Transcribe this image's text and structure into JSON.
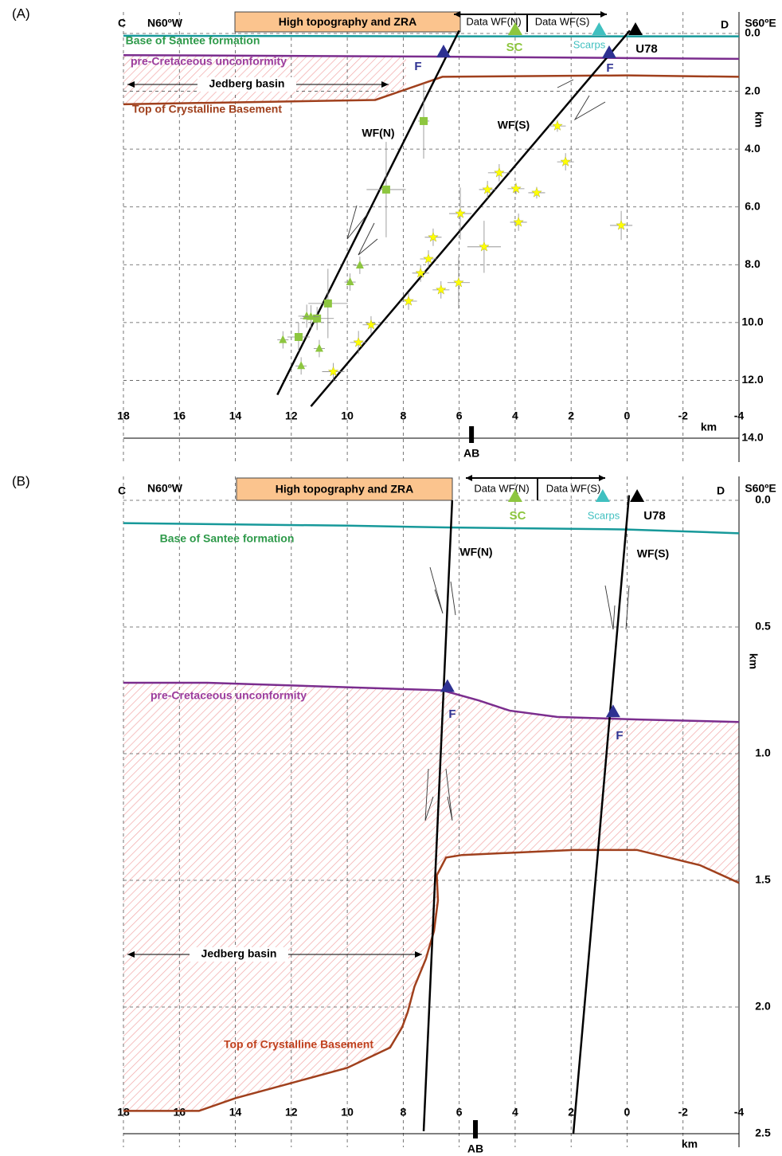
{
  "chart_data": [
    {
      "type": "scatter",
      "panel_label": "(A)",
      "left_label": "C",
      "left_direction": "N60ºW",
      "right_label": "D",
      "right_direction": "S60ºE",
      "box_label": "High topography and ZRA",
      "data_labels": [
        "Data WF(N)",
        "Data WF(S)"
      ],
      "basin_label": "Jedberg basin",
      "x_marker_label": "AB",
      "x_marker": 5.56,
      "xlabel": "km",
      "ylabel": "km",
      "xlim": [
        18,
        -4
      ],
      "xticks": [
        18,
        16,
        14,
        12,
        10,
        8,
        6,
        4,
        2,
        0,
        -2,
        -4
      ],
      "ylim": [
        0,
        14
      ],
      "y_inverted": true,
      "grid": true,
      "yticks": [
        {
          "value": 0,
          "label": "0.0"
        },
        {
          "value": 2,
          "label": "2.0"
        },
        {
          "value": 4,
          "label": "4.0"
        },
        {
          "value": 6,
          "label": "6.0"
        },
        {
          "value": 8,
          "label": "8.0"
        },
        {
          "value": 10,
          "label": "10.0"
        },
        {
          "value": 12,
          "label": "12.0"
        },
        {
          "value": 14,
          "label": "14.0"
        }
      ],
      "boundaries": [
        {
          "name": "Base of Santee formation",
          "color": "#17999a",
          "label_color": "#2e9a4a",
          "x": [
            18,
            6,
            -4
          ],
          "y": [
            0.08,
            0.1,
            0.1
          ]
        },
        {
          "name": "pre-Cretaceous unconformity",
          "color": "#7b2d8e",
          "label_color": "#9b3d9e",
          "x": [
            18,
            7,
            0,
            -4
          ],
          "y": [
            0.75,
            0.8,
            0.85,
            0.88
          ]
        },
        {
          "name": "Top of Crystalline Basement",
          "color": "#a0401d",
          "label_color": "#a0401d",
          "x": [
            18,
            9,
            8.4,
            6.6,
            0,
            -4
          ],
          "y": [
            2.45,
            2.3,
            2.1,
            1.5,
            1.45,
            1.5
          ]
        }
      ],
      "faults": [
        {
          "name": "WF(N)",
          "color": "#000000",
          "x": [
            6,
            12.5
          ],
          "y": [
            -0.1,
            12.5
          ]
        },
        {
          "name": "WF(S)",
          "color": "#000000",
          "x": [
            -0.1,
            11.3
          ],
          "y": [
            -0.1,
            12.9
          ]
        }
      ],
      "series": [
        {
          "marker": "square",
          "color": "#8dc63f",
          "x": [
            7.27,
            8.61,
            10.69,
            11.74,
            11.08
          ],
          "y": [
            3.03,
            5.4,
            9.34,
            10.5,
            9.86
          ],
          "xerr": [
            0.2,
            0.7,
            0.7,
            0.4,
            0.6
          ],
          "yerr": [
            1.3,
            1.65,
            1.2,
            0.5,
            0.4
          ]
        },
        {
          "marker": "triangle",
          "color": "#8dc63f",
          "x": [
            9.55,
            9.9,
            11.45,
            12.3,
            11.0,
            11.65,
            11.3
          ],
          "y": [
            8.02,
            8.6,
            9.78,
            10.6,
            10.9,
            11.5,
            9.8
          ],
          "xerr": [
            0.2,
            0.2,
            0.3,
            0.2,
            0.2,
            0.2,
            0.3
          ],
          "yerr": [
            0.3,
            0.3,
            0.4,
            0.3,
            0.3,
            0.3,
            0.4
          ]
        },
        {
          "marker": "star",
          "color": "#ffff00",
          "x": [
            2.49,
            2.2,
            3.23,
            3.97,
            4.57,
            4.99,
            5.96,
            3.88,
            6.93,
            5.11,
            7.1,
            7.38,
            6.02,
            6.65,
            7.81,
            9.15,
            9.6,
            10.5,
            0.21
          ],
          "y": [
            3.2,
            4.44,
            5.51,
            5.37,
            4.82,
            5.4,
            6.23,
            6.53,
            7.05,
            7.38,
            7.8,
            8.29,
            8.62,
            8.87,
            9.26,
            10.08,
            10.69,
            11.7,
            6.64
          ],
          "xerr": [
            0.3,
            0.3,
            0.3,
            0.3,
            0.4,
            0.3,
            0.4,
            0.3,
            0.3,
            0.6,
            0.3,
            0.3,
            0.4,
            0.3,
            0.3,
            0.3,
            0.3,
            0.4,
            0.4
          ],
          "yerr": [
            0.2,
            0.3,
            0.2,
            0.2,
            0.3,
            0.3,
            0.9,
            0.3,
            0.3,
            0.9,
            0.3,
            0.3,
            0.9,
            0.3,
            0.3,
            0.3,
            0.4,
            0.3,
            0.5
          ]
        }
      ],
      "markers": [
        {
          "label": "SC",
          "color": "#8dc63f",
          "x": 4,
          "y": 0
        },
        {
          "label": "Scarps",
          "color": "#40c0c0",
          "x": 1.0,
          "y": 0
        },
        {
          "label": "U78",
          "color": "#000000",
          "x": -0.3,
          "y": 0
        },
        {
          "label": "F",
          "color": "#2e3192",
          "x": 6.56,
          "y": 0.77
        },
        {
          "label": "F",
          "color": "#2e3192",
          "x": 0.64,
          "y": 0.8
        }
      ]
    },
    {
      "type": "line",
      "panel_label": "(B)",
      "left_label": "C",
      "left_direction": "N60ºW",
      "right_label": "D",
      "right_direction": "S60ºE",
      "box_label": "High topography and ZRA",
      "data_labels": [
        "Data WF(N)",
        "Data WF(S)"
      ],
      "basin_label": "Jedberg basin",
      "x_marker_label": "AB",
      "x_marker": 5.42,
      "xlabel": "km",
      "ylabel": "km",
      "xlim": [
        18,
        -4
      ],
      "xticks": [
        18,
        16,
        14,
        12,
        10,
        8,
        6,
        4,
        2,
        0,
        -2,
        -4
      ],
      "ylim": [
        0,
        2.5
      ],
      "y_inverted": true,
      "grid": true,
      "yticks": [
        {
          "value": 0,
          "label": "0.0"
        },
        {
          "value": 0.5,
          "label": "0.5"
        },
        {
          "value": 1,
          "label": "1.0"
        },
        {
          "value": 1.5,
          "label": "1.5"
        },
        {
          "value": 2,
          "label": "2.0"
        },
        {
          "value": 2.5,
          "label": "2.5"
        }
      ],
      "boundaries": [
        {
          "name": "Base of Santee formation",
          "color": "#17999a",
          "label_color": "#2e9a4a",
          "x": [
            18,
            10,
            6.5,
            0,
            -4
          ],
          "y": [
            0.09,
            0.1,
            0.107,
            0.115,
            0.13
          ]
        },
        {
          "name": "pre-Cretaceous unconformity",
          "color": "#7b2d8e",
          "label_color": "#9b3d9e",
          "x": [
            18,
            15,
            6.6,
            5.3,
            4.2,
            2.5,
            -0.4,
            -4
          ],
          "y": [
            0.72,
            0.72,
            0.75,
            0.79,
            0.83,
            0.855,
            0.865,
            0.875
          ]
        },
        {
          "name": "Top of Crystalline Basement",
          "color": "#a0401d",
          "label_color": "#c0401d",
          "x": [
            18,
            15.3,
            14,
            12,
            10,
            8.47,
            8.04,
            7.84,
            7.6,
            7.19,
            6.9,
            6.76,
            6.8,
            6.47,
            5.9,
            1.92,
            -0.35,
            -2.6,
            -4
          ],
          "y": [
            2.41,
            2.41,
            2.36,
            2.3,
            2.24,
            2.16,
            2.08,
            2.02,
            1.92,
            1.81,
            1.7,
            1.58,
            1.48,
            1.41,
            1.4,
            1.38,
            1.38,
            1.44,
            1.51
          ]
        }
      ],
      "faults": [
        {
          "name": "WF(N)",
          "color": "#000000",
          "x": [
            6.25,
            7.27
          ],
          "y": [
            0,
            2.49
          ]
        },
        {
          "name": "WF(S)",
          "color": "#000000",
          "x": [
            -0.07,
            1.92
          ],
          "y": [
            -0.02,
            2.5
          ]
        }
      ],
      "markers": [
        {
          "label": "SC",
          "color": "#8dc63f",
          "x": 4,
          "y": 0
        },
        {
          "label": "Scarps",
          "color": "#40c0c0",
          "x": 0.87,
          "y": 0
        },
        {
          "label": "U78",
          "color": "#000000",
          "x": -0.36,
          "y": 0
        },
        {
          "label": "F",
          "color": "#2e3192",
          "x": 6.42,
          "y": 0.75
        },
        {
          "label": "F",
          "color": "#2e3192",
          "x": 0.5,
          "y": 0.85
        }
      ]
    }
  ]
}
